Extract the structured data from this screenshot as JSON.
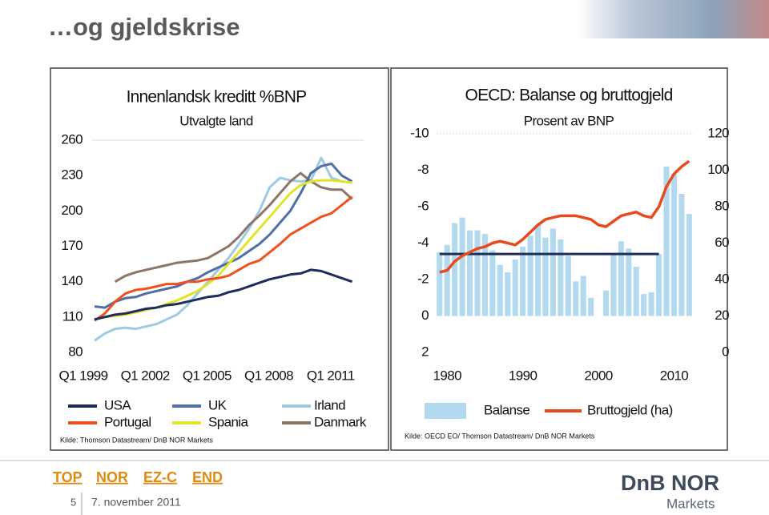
{
  "slide": {
    "title": "…og gjeldskrise",
    "nav": [
      "TOP",
      "NOR",
      "EZ-C",
      "END"
    ],
    "page": 5,
    "date": "7. november 2011",
    "logo": {
      "name": "DnB NOR",
      "sub": "Markets"
    }
  },
  "chart_data": [
    {
      "type": "line",
      "title": "Innenlandsk kreditt %BNP",
      "subtitle": "Utvalgte land",
      "source": "Kilde: Thomson Datastream/ DnB NOR Markets",
      "x": [
        1999,
        1999.5,
        2000,
        2000.5,
        2001,
        2001.5,
        2002,
        2002.5,
        2003,
        2003.5,
        2004,
        2004.5,
        2005,
        2005.5,
        2006,
        2006.5,
        2007,
        2007.5,
        2008,
        2008.5,
        2009,
        2009.5,
        2010,
        2010.5,
        2011,
        2011.5
      ],
      "xlim": [
        1998.3,
        2012.1
      ],
      "xticks": [
        {
          "value": 1999,
          "label": "Q1 1999"
        },
        {
          "value": 2002,
          "label": "Q1 2002"
        },
        {
          "value": 2005,
          "label": "Q1 2005"
        },
        {
          "value": 2008,
          "label": "Q1 2008"
        },
        {
          "value": 2011,
          "label": "Q1 2011"
        }
      ],
      "ylim": [
        80,
        260
      ],
      "yticks": [
        80,
        110,
        140,
        170,
        200,
        230,
        260
      ],
      "series": [
        {
          "name": "USA",
          "color": "#1f2d5c",
          "values": [
            108,
            110,
            112,
            113,
            115,
            117,
            118,
            120,
            121,
            123,
            125,
            127,
            128,
            131,
            133,
            136,
            139,
            142,
            144,
            146,
            147,
            150,
            149,
            146,
            143,
            140
          ]
        },
        {
          "name": "UK",
          "color": "#4e6fa8",
          "values": [
            119,
            118,
            123,
            126,
            127,
            130,
            132,
            134,
            136,
            140,
            143,
            148,
            152,
            156,
            160,
            166,
            172,
            180,
            190,
            200,
            215,
            232,
            238,
            240,
            230,
            225
          ]
        },
        {
          "name": "Irland",
          "color": "#9ecae1",
          "values": [
            90,
            96,
            100,
            101,
            100,
            102,
            104,
            108,
            112,
            120,
            130,
            140,
            150,
            160,
            172,
            185,
            200,
            220,
            228,
            226,
            225,
            226,
            245,
            228,
            225,
            224
          ]
        },
        {
          "name": "Portugal",
          "color": "#f0501e",
          "values": [
            107,
            113,
            123,
            130,
            133,
            134,
            136,
            138,
            138,
            140,
            140,
            142,
            143,
            145,
            150,
            155,
            158,
            165,
            172,
            180,
            185,
            190,
            195,
            198,
            205,
            212
          ]
        },
        {
          "name": "Spania",
          "color": "#e3e32a",
          "values": [
            108,
            110,
            111,
            112,
            114,
            116,
            118,
            121,
            124,
            128,
            132,
            138,
            145,
            155,
            165,
            175,
            185,
            195,
            205,
            215,
            222,
            225,
            226,
            226,
            225,
            224
          ]
        },
        {
          "name": "Danmark",
          "color": "#8c7468",
          "values": [
            null,
            null,
            140,
            145,
            148,
            150,
            152,
            154,
            156,
            157,
            158,
            160,
            165,
            170,
            178,
            188,
            196,
            205,
            215,
            225,
            232,
            225,
            220,
            218,
            218,
            210
          ]
        }
      ]
    },
    {
      "type": "combo",
      "title": "OECD: Balanse og bruttogjeld",
      "subtitle": "Prosent av BNP",
      "source": "Kilde: OECD EO/ Thomson Datastream/ DnB NOR Markets",
      "x": [
        1979,
        1980,
        1981,
        1982,
        1983,
        1984,
        1985,
        1986,
        1987,
        1988,
        1989,
        1990,
        1991,
        1992,
        1993,
        1994,
        1995,
        1996,
        1997,
        1998,
        1999,
        2000,
        2001,
        2002,
        2003,
        2004,
        2005,
        2006,
        2007,
        2008,
        2009,
        2010,
        2011,
        2012
      ],
      "xlim": [
        1978.6,
        2012.6
      ],
      "xticks": [
        1980,
        1990,
        2000,
        2010
      ],
      "ylim": [
        -10,
        2
      ],
      "y_reversed": true,
      "yticks": [
        -10,
        -8,
        -6,
        -4,
        -2,
        0,
        2
      ],
      "y2lim": [
        0,
        120
      ],
      "y2ticks": [
        0,
        20,
        40,
        60,
        80,
        100,
        120
      ],
      "average_line": {
        "value": -3.4,
        "from": 1979,
        "to": 2008,
        "color": "#1f2d5c"
      },
      "series": [
        {
          "name": "Balanse",
          "type": "bar",
          "color": "#b3d9ee",
          "values": [
            -3.5,
            -3.9,
            -5.1,
            -5.4,
            -4.7,
            -4.7,
            -4.5,
            -3.6,
            -2.8,
            -2.4,
            -3.1,
            -3.8,
            -4.4,
            -5.0,
            -4.3,
            -4.8,
            -4.2,
            -3.3,
            -1.9,
            -2.2,
            -1.0,
            0.0,
            -1.4,
            -3.4,
            -4.1,
            -3.7,
            -2.7,
            -1.2,
            -1.3,
            -3.4,
            -8.2,
            -7.8,
            -6.7,
            -5.6
          ]
        },
        {
          "name": "Bruttogjeld (ha)",
          "type": "line",
          "axis": "y2",
          "color": "#e8491d",
          "values": [
            44,
            45,
            50,
            53,
            55,
            57,
            58,
            60,
            61,
            60,
            59,
            62,
            66,
            70,
            73,
            74,
            75,
            75,
            75,
            74,
            73,
            70,
            69,
            72,
            75,
            76,
            77,
            75,
            74,
            80,
            91,
            98,
            102,
            105
          ]
        }
      ]
    }
  ]
}
